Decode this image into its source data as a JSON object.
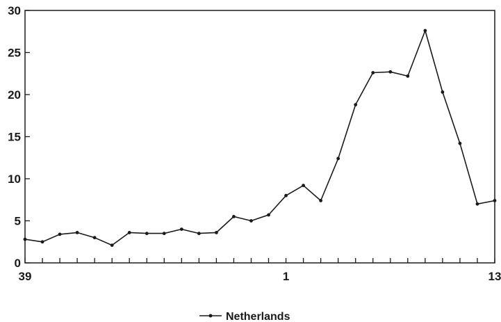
{
  "chart_data": {
    "type": "line",
    "x_tick_labels": [
      "39",
      "1",
      "13"
    ],
    "y_ticks": [
      0,
      5,
      10,
      15,
      20,
      25,
      30
    ],
    "ylim": [
      0,
      30
    ],
    "grid": false,
    "legend_position": "bottom-center",
    "series": [
      {
        "name": "Netherlands",
        "color": "#1a1a1a",
        "values": [
          2.8,
          2.5,
          3.4,
          3.6,
          3.0,
          2.1,
          3.6,
          3.5,
          3.5,
          4.0,
          3.5,
          3.6,
          5.5,
          5.0,
          5.7,
          8.0,
          9.2,
          7.4,
          12.4,
          18.8,
          22.6,
          22.7,
          22.2,
          27.6,
          20.3,
          14.2,
          7.0,
          7.4
        ]
      }
    ]
  }
}
